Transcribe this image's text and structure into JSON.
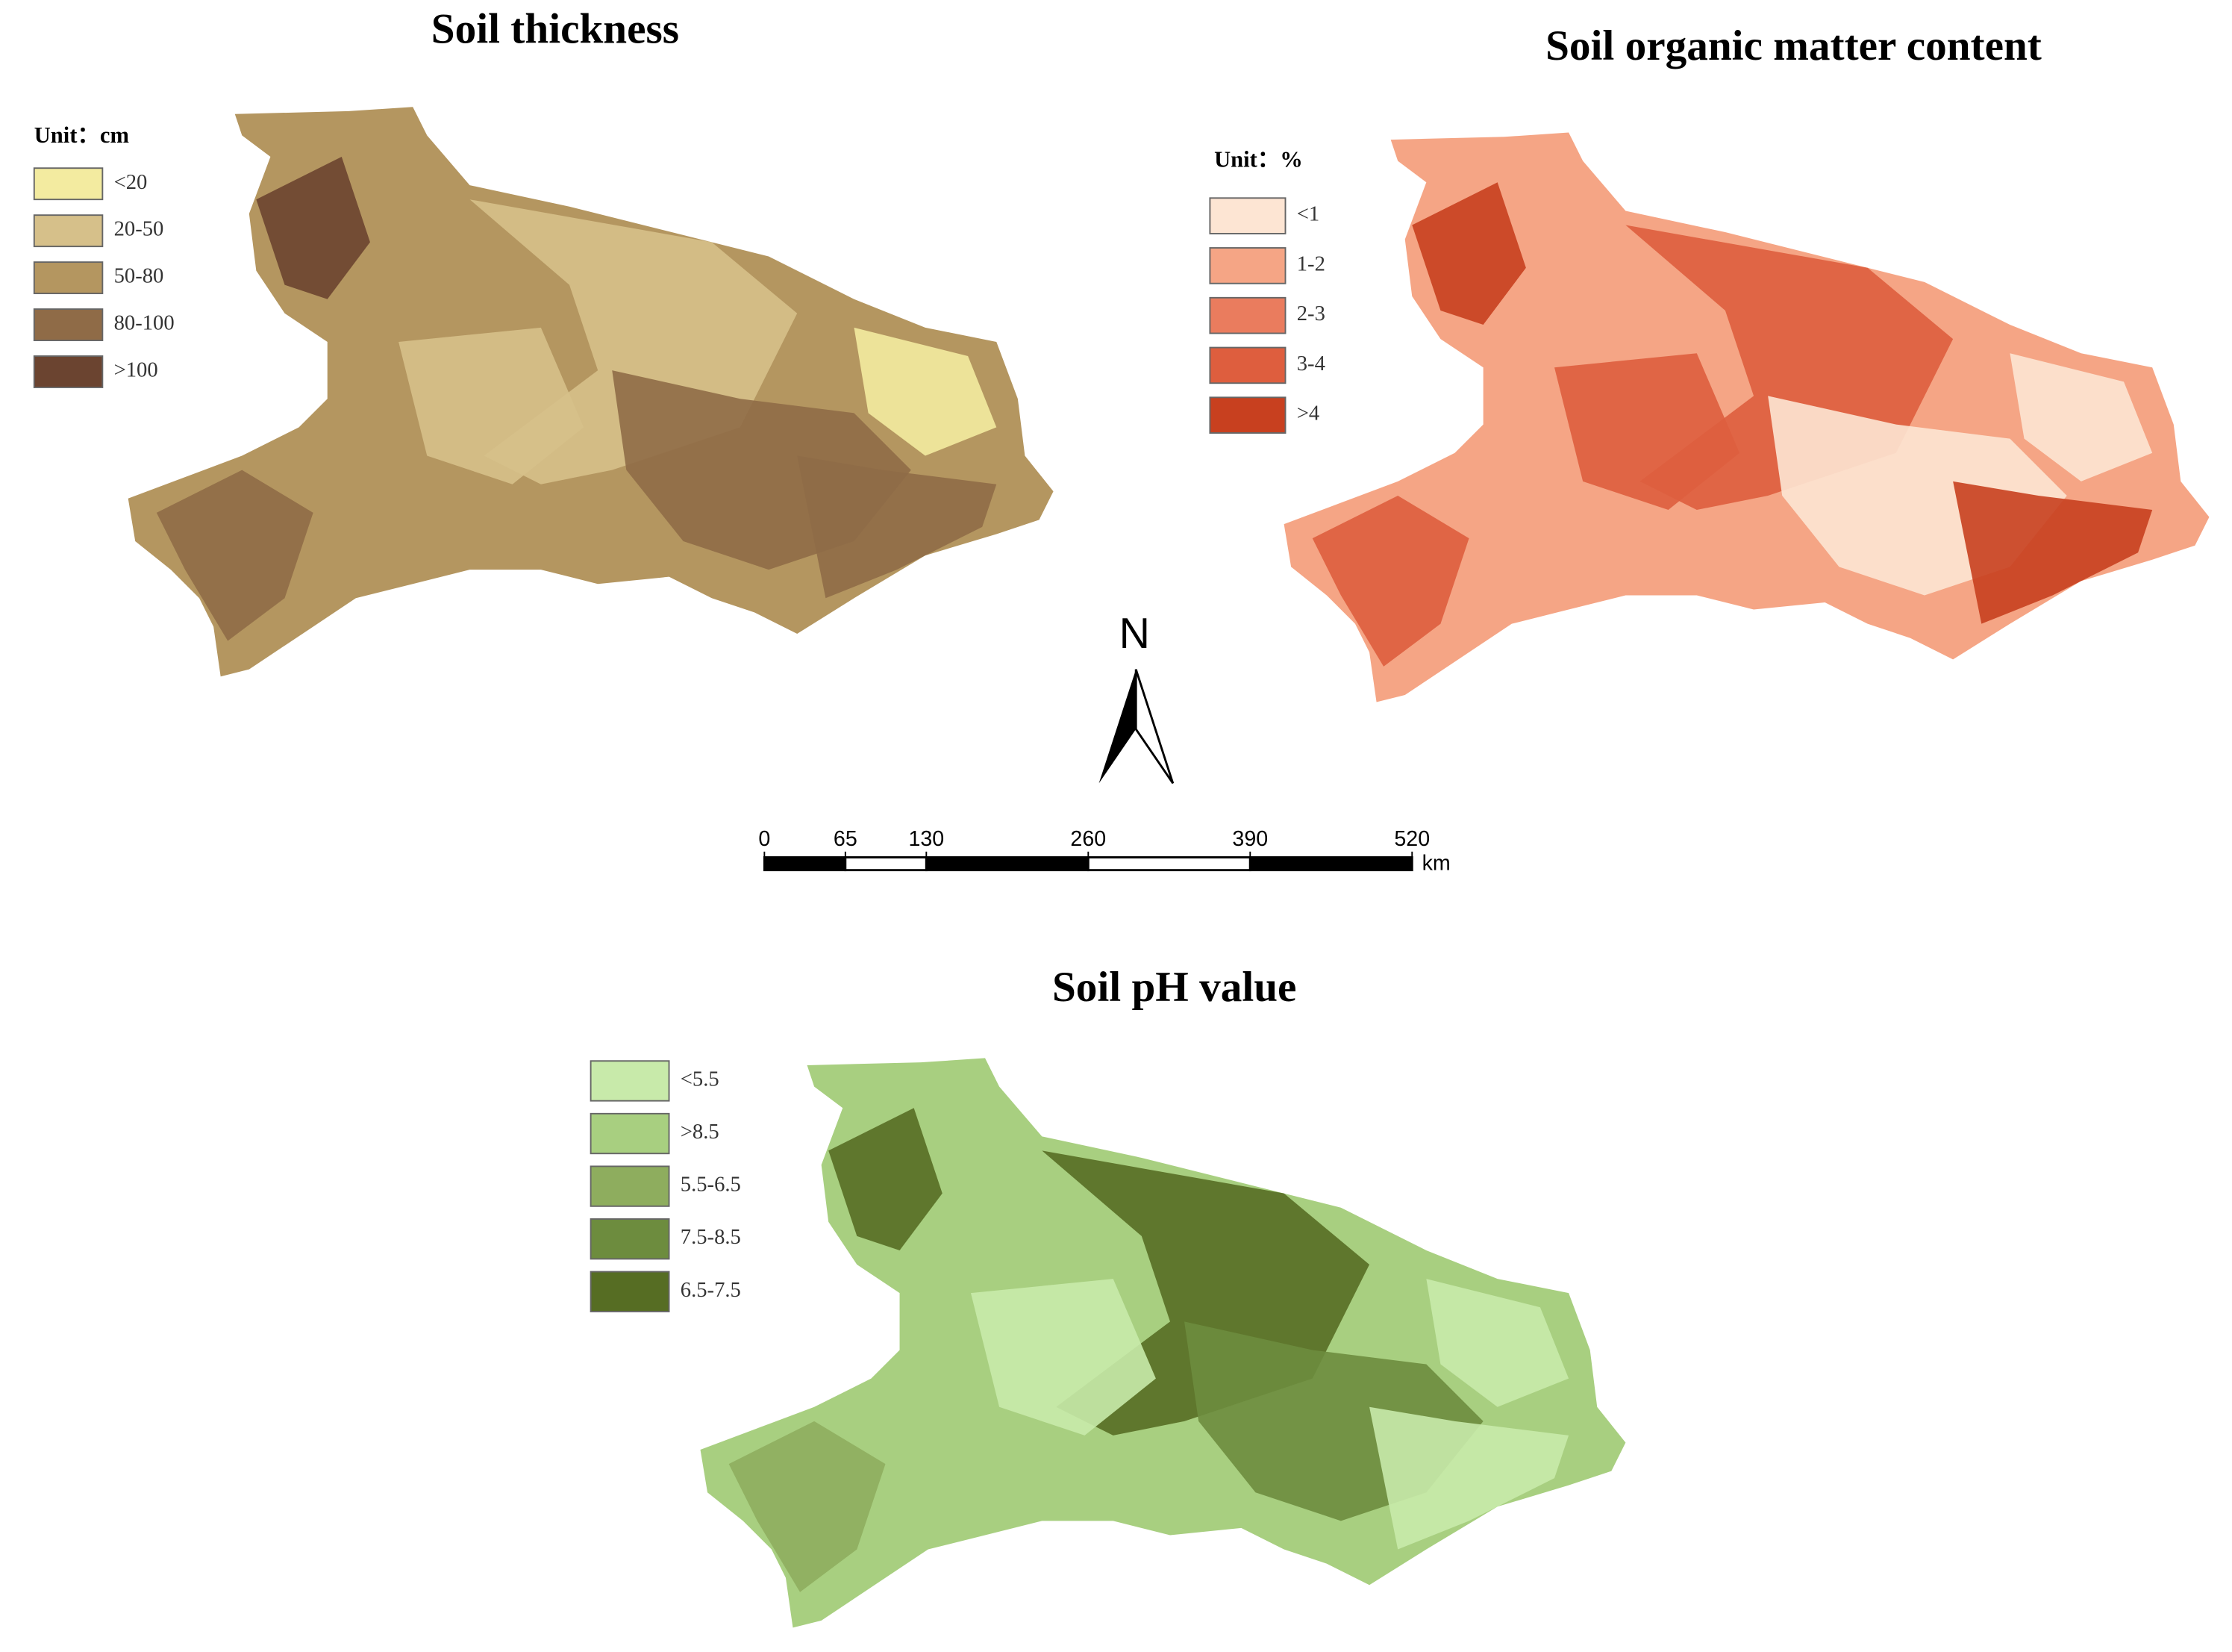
{
  "panels": [
    {
      "title": "Soil thickness",
      "unit": "Unit：cm",
      "legend": [
        {
          "label": "<20",
          "color": "#f3eba0"
        },
        {
          "label": "20-50",
          "color": "#d6c08a"
        },
        {
          "label": "50-80",
          "color": "#b49660"
        },
        {
          "label": "80-100",
          "color": "#8f6b47"
        },
        {
          "label": ">100",
          "color": "#6b4430"
        }
      ]
    },
    {
      "title": "Soil organic matter content",
      "unit": "Unit：%",
      "legend": [
        {
          "label": "<1",
          "color": "#fde5d3"
        },
        {
          "label": "1-2",
          "color": "#f5a585"
        },
        {
          "label": "2-3",
          "color": "#ea7c5e"
        },
        {
          "label": "3-4",
          "color": "#de5e3e"
        },
        {
          "label": ">4",
          "color": "#c8401f"
        }
      ]
    },
    {
      "title": "Soil pH value",
      "legend": [
        {
          "label": "<5.5",
          "color": "#c8eaaa"
        },
        {
          "label": ">8.5",
          "color": "#a8cf80"
        },
        {
          "label": "5.5-6.5",
          "color": "#8ead5e"
        },
        {
          "label": "7.5-8.5",
          "color": "#6d8c3e"
        },
        {
          "label": "6.5-7.5",
          "color": "#566d23"
        }
      ]
    }
  ],
  "north": "N",
  "scale_bar": {
    "ticks": [
      0,
      65,
      130,
      260,
      390,
      520
    ],
    "unit": "km"
  }
}
